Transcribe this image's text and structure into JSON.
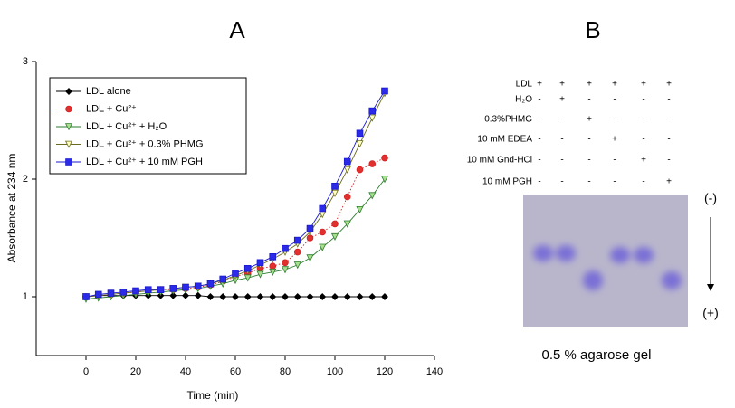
{
  "chart_data": {
    "type": "line",
    "title": "A",
    "x_label": "Time (min)",
    "y_label": "Absorbance at 234 nm",
    "x": [
      0,
      5,
      10,
      15,
      20,
      25,
      30,
      35,
      40,
      45,
      50,
      55,
      60,
      65,
      70,
      75,
      80,
      85,
      90,
      95,
      100,
      105,
      110,
      115,
      120
    ],
    "series": [
      {
        "name": "LDL alone",
        "color": "#000000",
        "fill": "#000000",
        "marker": "diamond",
        "line": "solid",
        "values": [
          1.0,
          1.01,
          1.01,
          1.01,
          1.01,
          1.01,
          1.01,
          1.01,
          1.01,
          1.01,
          1.0,
          1.0,
          1.0,
          1.0,
          1.0,
          1.0,
          1.0,
          1.0,
          1.0,
          1.0,
          1.0,
          1.0,
          1.0,
          1.0,
          1.0
        ]
      },
      {
        "name": "LDL + Cu²⁺",
        "color": "#d42020",
        "fill": "#e03030",
        "marker": "circle",
        "line": "dotted",
        "values": [
          1.0,
          1.01,
          1.02,
          1.03,
          1.04,
          1.05,
          1.06,
          1.06,
          1.07,
          1.08,
          1.1,
          1.13,
          1.17,
          1.2,
          1.24,
          1.26,
          1.29,
          1.38,
          1.5,
          1.55,
          1.62,
          1.85,
          2.08,
          2.13,
          2.18
        ]
      },
      {
        "name": "LDL + Cu²⁺ + H₂O",
        "color": "#2e7d2e",
        "fill": "#a8e090",
        "marker": "triangle-down",
        "line": "solid",
        "values": [
          0.98,
          0.99,
          1.0,
          1.01,
          1.02,
          1.03,
          1.04,
          1.05,
          1.06,
          1.07,
          1.09,
          1.11,
          1.14,
          1.16,
          1.19,
          1.21,
          1.23,
          1.27,
          1.33,
          1.42,
          1.51,
          1.62,
          1.74,
          1.86,
          2.0
        ]
      },
      {
        "name": "LDL + Cu²⁺ + 0.3% PHMG",
        "color": "#6b6b20",
        "fill": "#ffffc0",
        "marker": "triangle-down",
        "line": "solid",
        "values": [
          1.0,
          1.01,
          1.02,
          1.03,
          1.04,
          1.05,
          1.06,
          1.07,
          1.08,
          1.09,
          1.11,
          1.14,
          1.18,
          1.22,
          1.27,
          1.32,
          1.38,
          1.45,
          1.55,
          1.7,
          1.88,
          2.08,
          2.3,
          2.52,
          2.73
        ]
      },
      {
        "name": "LDL + Cu²⁺ + 10 mM PGH",
        "color": "#1a1acc",
        "fill": "#2a2ae8",
        "marker": "square",
        "line": "solid",
        "values": [
          1.0,
          1.02,
          1.03,
          1.04,
          1.05,
          1.06,
          1.06,
          1.07,
          1.08,
          1.09,
          1.11,
          1.15,
          1.2,
          1.24,
          1.29,
          1.34,
          1.41,
          1.48,
          1.58,
          1.75,
          1.94,
          2.15,
          2.39,
          2.58,
          2.75
        ]
      }
    ],
    "xlim": [
      -20,
      140
    ],
    "xticks": [
      0,
      20,
      40,
      60,
      80,
      100,
      120,
      140
    ],
    "ylim": [
      0.5,
      3
    ],
    "yticks": [
      1,
      2,
      3
    ],
    "legend": "upper left",
    "grid": false
  },
  "gel": {
    "panel_label": "B",
    "row_labels": [
      "LDL",
      "H₂O",
      "0.3%PHMG",
      "10 mM EDEA",
      "10 mM Gnd-HCl",
      "10 mM PGH"
    ],
    "rows": [
      [
        "+",
        "+",
        "+",
        "+",
        "+",
        "+"
      ],
      [
        "-",
        "+",
        "-",
        "-",
        "-",
        "-"
      ],
      [
        "-",
        "-",
        "+",
        "-",
        "-",
        "-"
      ],
      [
        "-",
        "-",
        "-",
        "+",
        "-",
        "-"
      ],
      [
        "-",
        "-",
        "-",
        "-",
        "+",
        "-"
      ],
      [
        "-",
        "-",
        "-",
        "-",
        "-",
        "+"
      ]
    ],
    "negative": "(-)",
    "positive": "(+)",
    "caption": "0.5 % agarose gel"
  }
}
